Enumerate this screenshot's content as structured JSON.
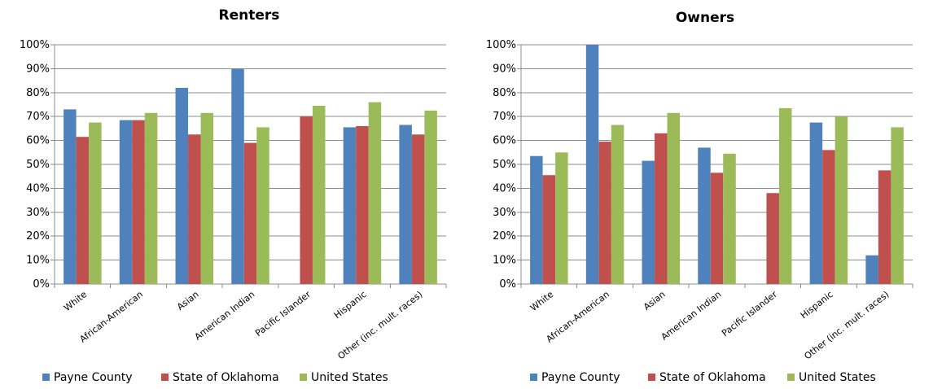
{
  "chart_data": [
    {
      "type": "bar",
      "title": "Renters",
      "xlabel": "",
      "ylabel": "",
      "ylim": [
        0,
        100
      ],
      "yticks": [
        "0%",
        "10%",
        "20%",
        "30%",
        "40%",
        "50%",
        "60%",
        "70%",
        "80%",
        "90%",
        "100%"
      ],
      "grid": true,
      "legend_position": "bottom",
      "categories": [
        "White",
        "African-American",
        "Asian",
        "American Indian",
        "Pacific Islander",
        "Hispanic",
        "Other (inc. mult. races)"
      ],
      "series": [
        {
          "name": "Payne County",
          "color": "#4F81BD",
          "values": [
            73,
            68.5,
            82,
            90,
            null,
            65.5,
            66.5
          ]
        },
        {
          "name": "State of Oklahoma",
          "color": "#C0504D",
          "values": [
            61.5,
            68.5,
            62.5,
            59,
            70,
            66,
            62.5
          ]
        },
        {
          "name": "United States",
          "color": "#9BBB59",
          "values": [
            67.5,
            71.5,
            71.5,
            65.5,
            74.5,
            76,
            72.5
          ]
        }
      ]
    },
    {
      "type": "bar",
      "title": "Owners",
      "xlabel": "",
      "ylabel": "",
      "ylim": [
        0,
        100
      ],
      "yticks": [
        "0%",
        "10%",
        "20%",
        "30%",
        "40%",
        "50%",
        "60%",
        "70%",
        "80%",
        "90%",
        "100%"
      ],
      "grid": true,
      "legend_position": "bottom",
      "categories": [
        "White",
        "African-American",
        "Asian",
        "American Indian",
        "Pacific Islander",
        "Hispanic",
        "Other (inc. mult. races)"
      ],
      "series": [
        {
          "name": "Payne County",
          "color": "#4F81BD",
          "values": [
            53.5,
            100,
            51.5,
            57,
            null,
            67.5,
            12
          ]
        },
        {
          "name": "State of Oklahoma",
          "color": "#C0504D",
          "values": [
            45.5,
            59.5,
            63,
            46.5,
            38,
            56,
            47.5
          ]
        },
        {
          "name": "United States",
          "color": "#9BBB59",
          "values": [
            55,
            66.5,
            71.5,
            54.5,
            73.5,
            70,
            65.5
          ]
        }
      ]
    }
  ]
}
